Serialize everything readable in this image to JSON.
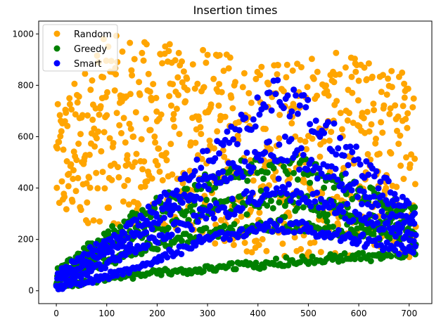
{
  "chart_data": {
    "type": "scatter",
    "title": "Insertion times",
    "xlabel": "",
    "ylabel": "",
    "xlim": [
      -35,
      745
    ],
    "ylim": [
      -50,
      1050
    ],
    "xticks": [
      0,
      100,
      200,
      300,
      400,
      500,
      600,
      700
    ],
    "yticks": [
      0,
      200,
      400,
      600,
      800,
      1000
    ],
    "grid": false,
    "legend_position": "top-left",
    "n_points": 714,
    "series": [
      {
        "name": "Random",
        "color": "#ffa500",
        "description": "Uniformly scattered points, roughly 250–1000 for x < 300, tapering to about 100–900 across x = 0–713",
        "band": [
          [
            0,
            260,
            720
          ],
          [
            100,
            260,
            1000
          ],
          [
            250,
            220,
            960
          ],
          [
            400,
            130,
            900
          ],
          [
            550,
            130,
            930
          ],
          [
            713,
            130,
            860
          ]
        ]
      },
      {
        "name": "Greedy",
        "color": "#008000",
        "description": "Several rising bands from near 0, peaking around x = 400–450 (≈100–560), then slowly declining toward x = 713",
        "curves": [
          {
            "label": "band1",
            "points": [
              [
                0,
                20
              ],
              [
                150,
                60
              ],
              [
                300,
                90
              ],
              [
                450,
                110
              ],
              [
                713,
                150
              ]
            ]
          },
          {
            "label": "band2",
            "points": [
              [
                0,
                40
              ],
              [
                150,
                150
              ],
              [
                300,
                220
              ],
              [
                450,
                260
              ],
              [
                713,
                200
              ]
            ]
          },
          {
            "label": "band3",
            "points": [
              [
                0,
                60
              ],
              [
                150,
                220
              ],
              [
                300,
                320
              ],
              [
                450,
                360
              ],
              [
                713,
                240
              ]
            ]
          },
          {
            "label": "band4",
            "points": [
              [
                0,
                80
              ],
              [
                150,
                280
              ],
              [
                300,
                420
              ],
              [
                450,
                500
              ],
              [
                713,
                300
              ]
            ]
          }
        ]
      },
      {
        "name": "Smart",
        "color": "#0000ff",
        "description": "Arched bands rising from ~0, peaking near x = 420–450 (≈180–790), then declining to ~150–450 at x = 713",
        "curves": [
          {
            "label": "band1",
            "points": [
              [
                0,
                10
              ],
              [
                150,
                80
              ],
              [
                300,
                200
              ],
              [
                450,
                260
              ],
              [
                713,
                150
              ]
            ]
          },
          {
            "label": "band2",
            "points": [
              [
                0,
                20
              ],
              [
                150,
                150
              ],
              [
                300,
                300
              ],
              [
                450,
                400
              ],
              [
                713,
                200
              ]
            ]
          },
          {
            "label": "band3",
            "points": [
              [
                0,
                40
              ],
              [
                150,
                200
              ],
              [
                300,
                420
              ],
              [
                450,
                560
              ],
              [
                713,
                250
              ]
            ]
          },
          {
            "label": "band4",
            "points": [
              [
                0,
                60
              ],
              [
                200,
                320
              ],
              [
                350,
                600
              ],
              [
                450,
                780
              ],
              [
                600,
                500
              ],
              [
                713,
                300
              ]
            ]
          }
        ]
      }
    ]
  }
}
